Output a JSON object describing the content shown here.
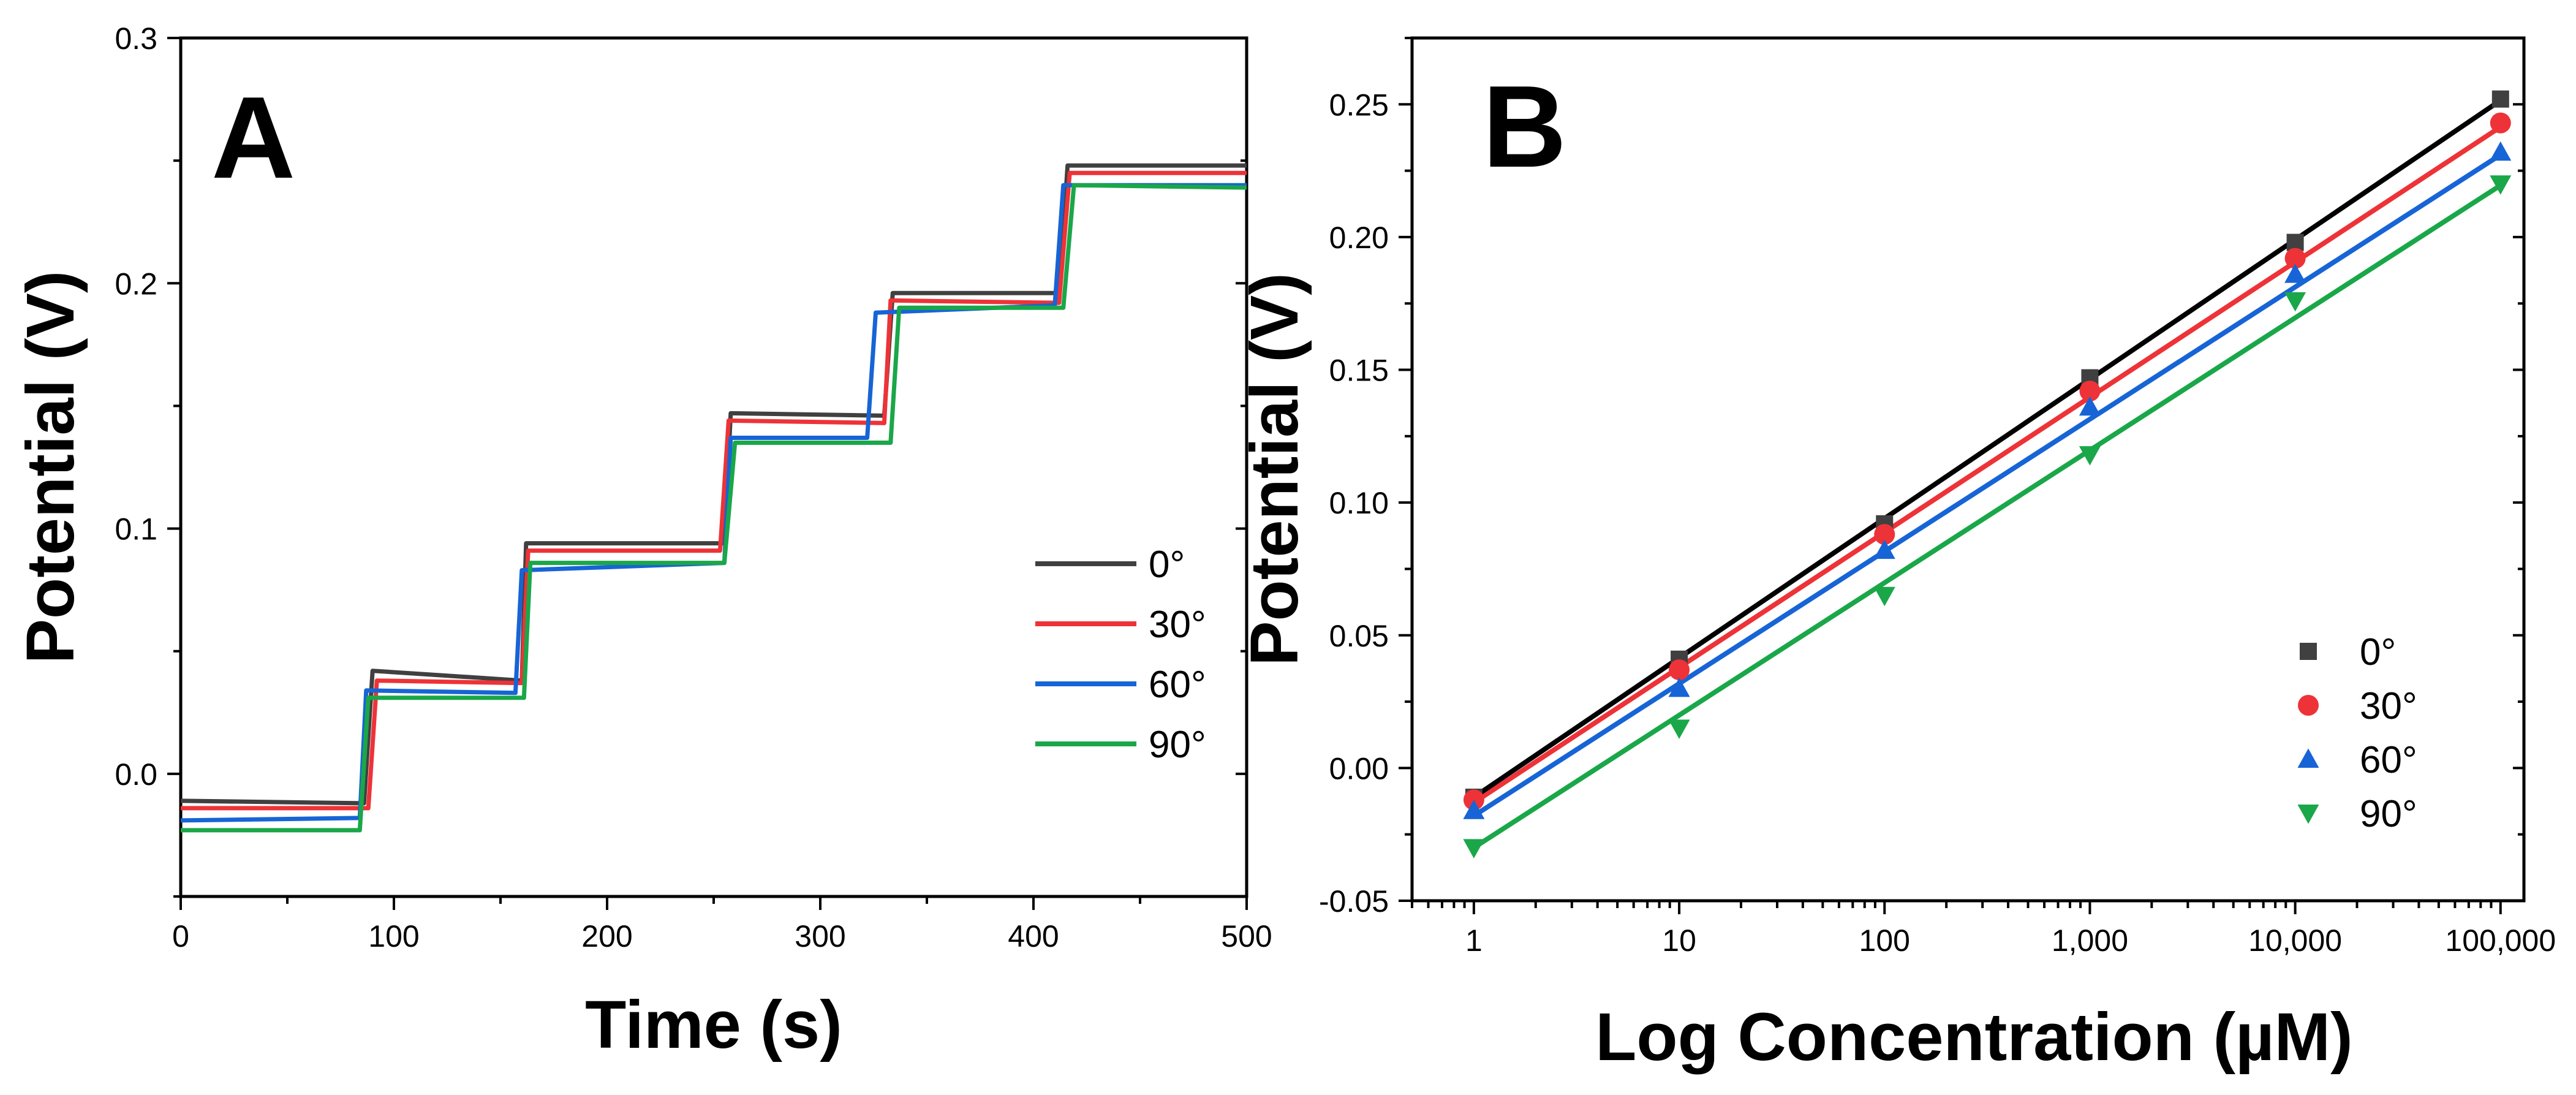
{
  "chart_data": [
    {
      "type": "line",
      "panel": "A",
      "xlabel": "Time (s)",
      "ylabel": "Potential (V)",
      "xlim": [
        0,
        500
      ],
      "ylim": [
        -0.05,
        0.3
      ],
      "xticks": [
        0,
        100,
        200,
        300,
        400,
        500
      ],
      "xtick_labels": [
        "0",
        "100",
        "200",
        "300",
        "400",
        "500"
      ],
      "yticks": [
        0.0,
        0.1,
        0.2,
        0.3
      ],
      "ytick_labels": [
        "0.0",
        "0.1",
        "0.2",
        "0.3"
      ],
      "legend_position": "center-right",
      "series": [
        {
          "name": "0°",
          "color": "#404040",
          "x": [
            0,
            86,
            90,
            160,
            162,
            255,
            258,
            330,
            334,
            412,
            416,
            500
          ],
          "y": [
            -0.011,
            -0.012,
            0.042,
            0.038,
            0.094,
            0.094,
            0.147,
            0.146,
            0.196,
            0.196,
            0.248,
            0.248
          ]
        },
        {
          "name": "30°",
          "color": "#ee3338",
          "x": [
            0,
            88,
            92,
            160,
            163,
            253,
            257,
            330,
            333,
            412,
            417,
            500
          ],
          "y": [
            -0.014,
            -0.014,
            0.038,
            0.037,
            0.091,
            0.091,
            0.144,
            0.143,
            0.193,
            0.192,
            0.245,
            0.245
          ]
        },
        {
          "name": "60°",
          "color": "#1664d6",
          "x": [
            0,
            84,
            87,
            157,
            160,
            255,
            258,
            322,
            326,
            410,
            414,
            500
          ],
          "y": [
            -0.019,
            -0.018,
            0.034,
            0.033,
            0.083,
            0.086,
            0.137,
            0.137,
            0.188,
            0.191,
            0.24,
            0.24
          ]
        },
        {
          "name": "90°",
          "color": "#1aa74a",
          "x": [
            0,
            84,
            88,
            161,
            164,
            255,
            260,
            333,
            337,
            414,
            419,
            500
          ],
          "y": [
            -0.023,
            -0.023,
            0.031,
            0.031,
            0.086,
            0.086,
            0.135,
            0.135,
            0.19,
            0.19,
            0.24,
            0.239
          ]
        }
      ]
    },
    {
      "type": "scatter",
      "panel": "B",
      "xlabel": "Log Concentration (µM)",
      "ylabel": "Potential (V)",
      "xscale": "log",
      "xlim": [
        0.5,
        130000
      ],
      "ylim": [
        -0.05,
        0.275
      ],
      "x": [
        1,
        10,
        100,
        1000,
        10000,
        100000
      ],
      "xtick_labels": [
        "1",
        "10",
        "100",
        "1,000",
        "10,000",
        "100,000"
      ],
      "yticks": [
        -0.05,
        0.0,
        0.05,
        0.1,
        0.15,
        0.2,
        0.25
      ],
      "ytick_labels": [
        "-0.05",
        "0.00",
        "0.05",
        "0.10",
        "0.15",
        "0.20",
        "0.25"
      ],
      "legend_position": "bottom-right",
      "series": [
        {
          "name": "0°",
          "color": "#404040",
          "marker": "square",
          "values": [
            -0.011,
            0.041,
            0.092,
            0.147,
            0.198,
            0.252
          ],
          "fit": [
            -0.011,
            0.2515
          ]
        },
        {
          "name": "30°",
          "color": "#ee3338",
          "marker": "circle",
          "values": [
            -0.012,
            0.037,
            0.088,
            0.142,
            0.192,
            0.243
          ],
          "fit": [
            -0.013,
            0.2415
          ]
        },
        {
          "name": "60°",
          "color": "#1664d6",
          "marker": "triangle-up",
          "values": [
            -0.016,
            0.03,
            0.082,
            0.136,
            0.186,
            0.232
          ],
          "fit": [
            -0.018,
            0.231
          ]
        },
        {
          "name": "90°",
          "color": "#1aa74a",
          "marker": "triangle-down",
          "values": [
            -0.03,
            0.015,
            0.065,
            0.118,
            0.176,
            0.22
          ],
          "fit": [
            -0.03,
            0.2195
          ]
        }
      ]
    }
  ],
  "panels": {
    "a_label": "A",
    "b_label": "B"
  }
}
